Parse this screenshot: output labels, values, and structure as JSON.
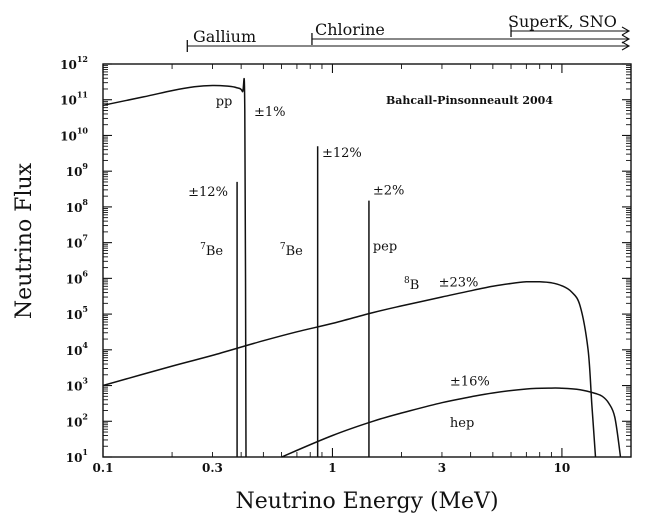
{
  "chart_data": {
    "type": "line",
    "title": "",
    "source_note": "Bahcall-Pinsonneault 2004",
    "xlabel": "Neutrino Energy (MeV)",
    "ylabel": "Neutrino Flux",
    "x_scale": "log",
    "y_scale": "log",
    "xlim": [
      0.1,
      20
    ],
    "ylim": [
      10,
      1000000000000
    ],
    "x_ticks": [
      {
        "value": 0.1,
        "label": "0.1"
      },
      {
        "value": 0.3,
        "label": "0.3"
      },
      {
        "value": 1,
        "label": "1"
      },
      {
        "value": 3,
        "label": "3"
      },
      {
        "value": 10,
        "label": "10"
      }
    ],
    "y_ticks": [
      {
        "exp": 1,
        "base": "10",
        "sup": "1"
      },
      {
        "exp": 2,
        "base": "10",
        "sup": "2"
      },
      {
        "exp": 3,
        "base": "10",
        "sup": "3"
      },
      {
        "exp": 4,
        "base": "10",
        "sup": "4"
      },
      {
        "exp": 5,
        "base": "10",
        "sup": "5"
      },
      {
        "exp": 6,
        "base": "10",
        "sup": "6"
      },
      {
        "exp": 7,
        "base": "10",
        "sup": "7"
      },
      {
        "exp": 8,
        "base": "10",
        "sup": "8"
      },
      {
        "exp": 9,
        "base": "10",
        "sup": "9"
      },
      {
        "exp": 10,
        "base": "10",
        "sup": "10"
      },
      {
        "exp": 11,
        "base": "10",
        "sup": "11"
      },
      {
        "exp": 12,
        "base": "10",
        "sup": "12"
      }
    ],
    "thresholds": [
      {
        "label": "Gallium",
        "start": 0.233
      },
      {
        "label": "Chlorine",
        "start": 0.814
      },
      {
        "label": "SuperK, SNO",
        "start": 6.0
      }
    ],
    "series": [
      {
        "id": "pp",
        "shape": "curve",
        "points": [
          [
            0.1,
            70000000000
          ],
          [
            0.15,
            120000000000
          ],
          [
            0.2,
            180000000000
          ],
          [
            0.25,
            230000000000
          ],
          [
            0.3,
            250000000000
          ],
          [
            0.35,
            240000000000
          ],
          [
            0.38,
            220000000000
          ],
          [
            0.405,
            170000000000
          ],
          [
            0.415,
            50000000000
          ],
          [
            0.42,
            10
          ]
        ]
      },
      {
        "id": "be7-low",
        "shape": "line",
        "energy": 0.384,
        "peak": 500000000
      },
      {
        "id": "be7-high",
        "shape": "line",
        "energy": 0.862,
        "peak": 5000000000
      },
      {
        "id": "pep",
        "shape": "line",
        "energy": 1.442,
        "peak": 150000000
      },
      {
        "id": "b8",
        "shape": "curve",
        "points": [
          [
            0.1,
            1000
          ],
          [
            0.2,
            3500
          ],
          [
            0.3,
            7000
          ],
          [
            0.5,
            18000
          ],
          [
            0.7,
            32000
          ],
          [
            1,
            55000
          ],
          [
            1.5,
            110000
          ],
          [
            2,
            170000
          ],
          [
            3,
            300000
          ],
          [
            4,
            450000
          ],
          [
            5,
            600000
          ],
          [
            6,
            720000
          ],
          [
            7,
            800000
          ],
          [
            8,
            800000
          ],
          [
            9,
            750000
          ],
          [
            10,
            620000
          ],
          [
            11,
            420000
          ],
          [
            12,
            170000
          ],
          [
            13,
            10000
          ],
          [
            13.5,
            300
          ],
          [
            14,
            10
          ]
        ]
      },
      {
        "id": "hep",
        "shape": "curve",
        "points": [
          [
            0.6,
            10
          ],
          [
            1,
            40
          ],
          [
            1.5,
            100
          ],
          [
            2,
            170
          ],
          [
            3,
            330
          ],
          [
            4,
            480
          ],
          [
            5,
            620
          ],
          [
            7,
            800
          ],
          [
            9,
            850
          ],
          [
            10,
            840
          ],
          [
            12,
            760
          ],
          [
            14,
            600
          ],
          [
            15,
            500
          ],
          [
            16,
            320
          ],
          [
            17,
            130
          ],
          [
            18,
            10
          ]
        ]
      }
    ],
    "annotations": [
      {
        "text": "pp",
        "x": 0.31,
        "y": 70000000000
      },
      {
        "text": "±1%",
        "x": 0.455,
        "y": 35000000000
      },
      {
        "text": "±12%",
        "x": 0.235,
        "y": 200000000
      },
      {
        "text": "Be",
        "sup": "7",
        "x": 0.265,
        "y": 4500000
      },
      {
        "text": "Be",
        "sup": "7",
        "x": 0.59,
        "y": 4500000
      },
      {
        "text": "±12%",
        "x": 0.9,
        "y": 2500000000
      },
      {
        "text": "±2%",
        "x": 1.5,
        "y": 220000000
      },
      {
        "text": "pep",
        "x": 1.5,
        "y": 6000000
      },
      {
        "text": "B",
        "sup": "8",
        "x": 2.05,
        "y": 500000
      },
      {
        "text": "±23%",
        "x": 2.9,
        "y": 600000
      },
      {
        "text": "±16%",
        "x": 3.25,
        "y": 1000
      },
      {
        "text": "hep",
        "x": 3.25,
        "y": 70
      }
    ]
  }
}
